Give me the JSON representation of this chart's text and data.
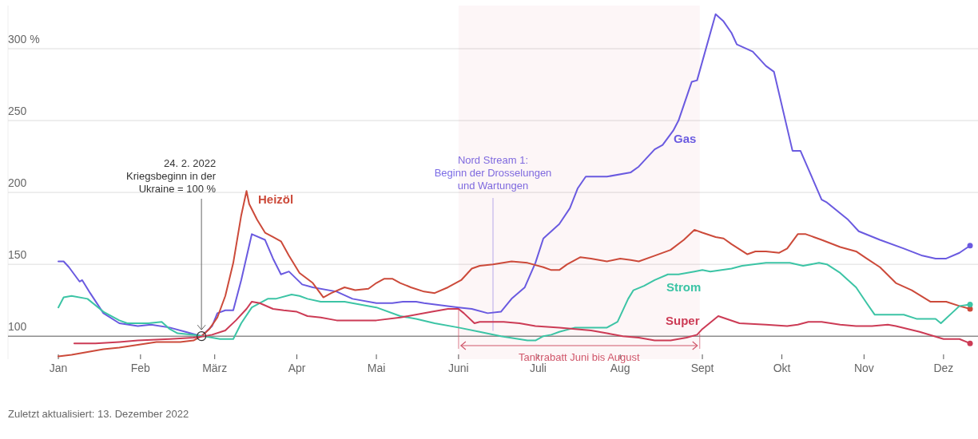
{
  "chart_data": {
    "type": "line",
    "xlim": [
      "2021-12-13",
      "2022-12-14"
    ],
    "ylim": [
      84,
      330
    ],
    "xticks": [
      {
        "value": "2022-01-01",
        "label": "Jan"
      },
      {
        "value": "2022-02-01",
        "label": "Feb"
      },
      {
        "value": "2022-03-01",
        "label": "März"
      },
      {
        "value": "2022-04-01",
        "label": "Apr"
      },
      {
        "value": "2022-05-01",
        "label": "Mai"
      },
      {
        "value": "2022-06-01",
        "label": "Juni"
      },
      {
        "value": "2022-07-01",
        "label": "Juli"
      },
      {
        "value": "2022-08-01",
        "label": "Aug"
      },
      {
        "value": "2022-09-01",
        "label": "Sept"
      },
      {
        "value": "2022-10-01",
        "label": "Okt"
      },
      {
        "value": "2022-11-01",
        "label": "Nov"
      },
      {
        "value": "2022-12-01",
        "label": "Dez"
      }
    ],
    "yticks": [
      100,
      150,
      200,
      250,
      {
        "value": 300,
        "label": "300 %"
      }
    ],
    "grid": "y",
    "series": [
      {
        "name": "Gas",
        "color": "#6a5ae0",
        "x": [
          "2022-01-01",
          "2022-01-03",
          "2022-01-05",
          "2022-01-09",
          "2022-01-10",
          "2022-01-13",
          "2022-01-18",
          "2022-01-24",
          "2022-01-31",
          "2022-02-05",
          "2022-02-12",
          "2022-02-18",
          "2022-02-24",
          "2022-02-28",
          "2022-03-02",
          "2022-03-05",
          "2022-03-08",
          "2022-03-11",
          "2022-03-15",
          "2022-03-20",
          "2022-03-23",
          "2022-03-26",
          "2022-03-29",
          "2022-04-03",
          "2022-04-07",
          "2022-04-16",
          "2022-04-22",
          "2022-05-01",
          "2022-05-07",
          "2022-05-11",
          "2022-05-16",
          "2022-05-19",
          "2022-06-01",
          "2022-06-06",
          "2022-06-12",
          "2022-06-17",
          "2022-06-21",
          "2022-06-26",
          "2022-06-30",
          "2022-07-03",
          "2022-07-06",
          "2022-07-09",
          "2022-07-13",
          "2022-07-16",
          "2022-07-19",
          "2022-07-27",
          "2022-08-05",
          "2022-08-08",
          "2022-08-14",
          "2022-08-17",
          "2022-08-21",
          "2022-08-23",
          "2022-08-28",
          "2022-08-30",
          "2022-09-06",
          "2022-09-09",
          "2022-09-12",
          "2022-09-14",
          "2022-09-20",
          "2022-09-25",
          "2022-09-28",
          "2022-10-05",
          "2022-10-08",
          "2022-10-16",
          "2022-10-18",
          "2022-10-26",
          "2022-10-30",
          "2022-11-07",
          "2022-11-16",
          "2022-11-23",
          "2022-11-28",
          "2022-12-02",
          "2022-12-07",
          "2022-12-11"
        ],
        "values": [
          152,
          152,
          148,
          138,
          139,
          130,
          116,
          109,
          107,
          108,
          106,
          103,
          100,
          107,
          116,
          118,
          118,
          139,
          171,
          167,
          154,
          143,
          145,
          136,
          134,
          131,
          126,
          123,
          123,
          124,
          124,
          123,
          120,
          119,
          116,
          117,
          126,
          134,
          151,
          168,
          173,
          178,
          189,
          203,
          211,
          211,
          214,
          218,
          230,
          233,
          243,
          250,
          277,
          278,
          324,
          319,
          311,
          303,
          298,
          288,
          284,
          229,
          229,
          195,
          193,
          181,
          173,
          167,
          161,
          156,
          154,
          154,
          158,
          163
        ]
      },
      {
        "name": "Heizöl",
        "color": "#cc4a3a",
        "x": [
          "2022-01-01",
          "2022-01-06",
          "2022-01-12",
          "2022-01-18",
          "2022-01-24",
          "2022-01-31",
          "2022-02-07",
          "2022-02-13",
          "2022-02-16",
          "2022-02-21",
          "2022-02-24",
          "2022-02-27",
          "2022-03-02",
          "2022-03-05",
          "2022-03-08",
          "2022-03-11",
          "2022-03-13",
          "2022-03-14",
          "2022-03-17",
          "2022-03-20",
          "2022-03-23",
          "2022-03-26",
          "2022-03-29",
          "2022-04-02",
          "2022-04-07",
          "2022-04-11",
          "2022-04-14",
          "2022-04-19",
          "2022-04-23",
          "2022-04-28",
          "2022-05-01",
          "2022-05-04",
          "2022-05-07",
          "2022-05-10",
          "2022-05-14",
          "2022-05-19",
          "2022-05-23",
          "2022-05-28",
          "2022-06-02",
          "2022-06-06",
          "2022-06-09",
          "2022-06-14",
          "2022-06-21",
          "2022-06-27",
          "2022-07-03",
          "2022-07-06",
          "2022-07-09",
          "2022-07-12",
          "2022-07-17",
          "2022-07-21",
          "2022-07-27",
          "2022-08-01",
          "2022-08-05",
          "2022-08-08",
          "2022-08-14",
          "2022-08-20",
          "2022-08-25",
          "2022-08-29",
          "2022-09-01",
          "2022-09-06",
          "2022-09-09",
          "2022-09-12",
          "2022-09-18",
          "2022-09-21",
          "2022-09-25",
          "2022-09-30",
          "2022-10-03",
          "2022-10-07",
          "2022-10-10",
          "2022-10-16",
          "2022-10-23",
          "2022-10-29",
          "2022-11-02",
          "2022-11-07",
          "2022-11-13",
          "2022-11-19",
          "2022-11-26",
          "2022-12-02",
          "2022-12-07",
          "2022-12-11"
        ],
        "values": [
          86,
          87,
          89,
          91,
          92,
          94,
          96,
          96,
          96,
          97,
          100,
          105,
          113,
          128,
          151,
          184,
          201,
          192,
          181,
          172,
          169,
          166,
          156,
          144,
          137,
          127,
          130,
          134,
          132,
          133,
          137,
          140,
          140,
          137,
          134,
          131,
          130,
          134,
          139,
          147,
          149,
          150,
          152,
          151,
          148,
          146,
          146,
          150,
          155,
          154,
          152,
          154,
          153,
          152,
          156,
          160,
          167,
          174,
          172,
          169,
          168,
          164,
          157,
          159,
          159,
          158,
          161,
          171,
          171,
          167,
          162,
          159,
          154,
          148,
          137,
          132,
          124,
          124,
          121,
          119
        ]
      },
      {
        "name": "Strom",
        "color": "#3cc4a5",
        "x": [
          "2022-01-01",
          "2022-01-03",
          "2022-01-06",
          "2022-01-12",
          "2022-01-18",
          "2022-01-24",
          "2022-01-27",
          "2022-02-01",
          "2022-02-04",
          "2022-02-09",
          "2022-02-12",
          "2022-02-15",
          "2022-02-21",
          "2022-02-25",
          "2022-02-28",
          "2022-03-03",
          "2022-03-08",
          "2022-03-11",
          "2022-03-15",
          "2022-03-21",
          "2022-03-24",
          "2022-03-30",
          "2022-04-02",
          "2022-04-05",
          "2022-04-10",
          "2022-04-19",
          "2022-05-01",
          "2022-05-10",
          "2022-05-16",
          "2022-05-23",
          "2022-06-01",
          "2022-06-09",
          "2022-06-17",
          "2022-06-27",
          "2022-06-30",
          "2022-07-03",
          "2022-07-06",
          "2022-07-09",
          "2022-07-15",
          "2022-07-18",
          "2022-07-27",
          "2022-07-31",
          "2022-08-04",
          "2022-08-06",
          "2022-08-10",
          "2022-08-14",
          "2022-08-19",
          "2022-08-23",
          "2022-08-29",
          "2022-09-01",
          "2022-09-04",
          "2022-09-12",
          "2022-09-16",
          "2022-09-25",
          "2022-10-04",
          "2022-10-09",
          "2022-10-15",
          "2022-10-18",
          "2022-10-23",
          "2022-10-29",
          "2022-11-02",
          "2022-11-05",
          "2022-11-16",
          "2022-11-21",
          "2022-11-28",
          "2022-11-30",
          "2022-12-07",
          "2022-12-11"
        ],
        "values": [
          120,
          127,
          128,
          126,
          117,
          111,
          109,
          109,
          109,
          110,
          105,
          102,
          101,
          100,
          99,
          98,
          98,
          109,
          120,
          126,
          126,
          129,
          128,
          126,
          124,
          124,
          120,
          114,
          112,
          109,
          106,
          103,
          100,
          97,
          97,
          100,
          101,
          103,
          106,
          106,
          106,
          110,
          126,
          132,
          135,
          139,
          143,
          143,
          145,
          146,
          145,
          147,
          149,
          151,
          151,
          149,
          151,
          150,
          144,
          134,
          123,
          115,
          115,
          112,
          112,
          109,
          121,
          122
        ]
      },
      {
        "name": "Super",
        "color": "#cc3b55",
        "x": [
          "2022-01-07",
          "2022-01-15",
          "2022-01-24",
          "2022-01-31",
          "2022-02-12",
          "2022-02-21",
          "2022-02-25",
          "2022-02-28",
          "2022-03-05",
          "2022-03-09",
          "2022-03-13",
          "2022-03-15",
          "2022-03-18",
          "2022-03-23",
          "2022-03-27",
          "2022-04-01",
          "2022-04-05",
          "2022-04-10",
          "2022-04-16",
          "2022-04-22",
          "2022-05-01",
          "2022-05-10",
          "2022-05-22",
          "2022-05-28",
          "2022-06-01",
          "2022-06-03",
          "2022-06-07",
          "2022-06-09",
          "2022-06-18",
          "2022-06-24",
          "2022-06-30",
          "2022-07-09",
          "2022-07-21",
          "2022-07-27",
          "2022-08-02",
          "2022-08-08",
          "2022-08-14",
          "2022-08-20",
          "2022-08-26",
          "2022-08-30",
          "2022-09-01",
          "2022-09-07",
          "2022-09-15",
          "2022-09-25",
          "2022-10-03",
          "2022-10-07",
          "2022-10-11",
          "2022-10-16",
          "2022-10-23",
          "2022-10-29",
          "2022-11-04",
          "2022-11-10",
          "2022-11-13",
          "2022-11-22",
          "2022-12-01",
          "2022-12-07",
          "2022-12-11"
        ],
        "values": [
          95,
          95,
          96,
          97,
          98,
          99,
          100,
          101,
          104,
          111,
          119,
          124,
          123,
          119,
          118,
          117,
          114,
          113,
          111,
          111,
          111,
          113,
          117,
          119,
          119,
          116,
          109,
          110,
          110,
          109,
          107,
          106,
          104,
          102,
          100,
          99,
          97,
          97,
          99,
          101,
          105,
          114,
          109,
          108,
          107,
          108,
          110,
          110,
          108,
          107,
          107,
          108,
          107,
          103,
          98,
          98,
          95
        ]
      }
    ],
    "ref_lines": [
      {
        "axis": "x",
        "value": "2022-06-14",
        "label": "Nord Stream 1:\nBeginn der Drosselungen\nund Wartungen",
        "color": "#7b6ce6"
      }
    ],
    "bands": [
      {
        "axis": "x",
        "from": "2022-06-01",
        "to": "2022-08-31",
        "label": "Tankrabatt Juni bis August",
        "color": "#d0566a"
      }
    ],
    "annotations": [
      {
        "text": "24. 2. 2022\nKriegsbeginn in der\nUkraine = 100 %",
        "x": "2022-02-24",
        "y": 100
      },
      "Zuletzt aktualisiert: 13. Dezember 2022"
    ]
  }
}
